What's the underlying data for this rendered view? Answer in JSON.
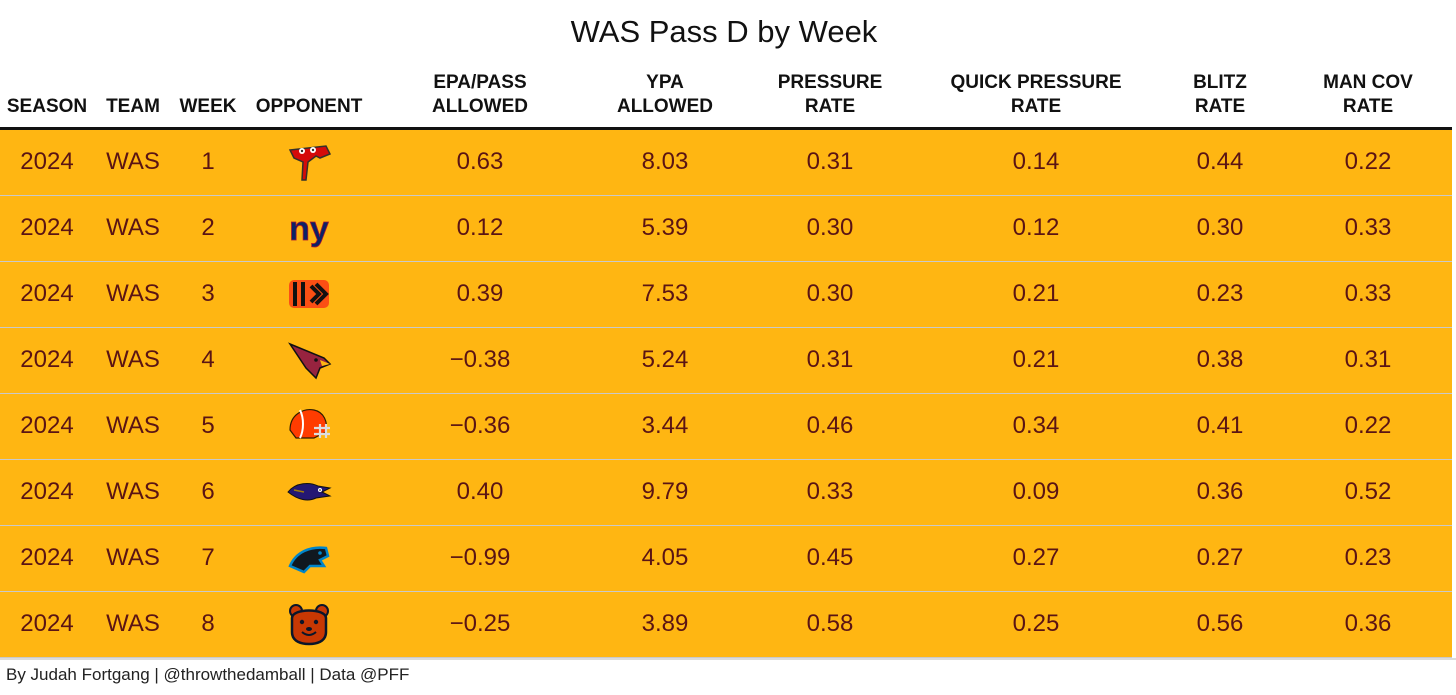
{
  "title": "WAS Pass D by Week",
  "columns": [
    "SEASON",
    "TEAM",
    "WEEK",
    "OPPONENT",
    "EPA/PASS\nALLOWED",
    "YPA\nALLOWED",
    "PRESSURE\nRATE",
    "QUICK PRESSURE\nRATE",
    "BLITZ\nRATE",
    "MAN COV\nRATE"
  ],
  "colors": {
    "row_bg": "#FFB612",
    "cell_text": "#5A1414",
    "header_rule": "#111111"
  },
  "chart_data": {
    "type": "table",
    "title": "WAS Pass D by Week",
    "rows": [
      {
        "season": "2024",
        "team": "WAS",
        "week": "1",
        "opponent": "tampa-bay-buccaneers-logo",
        "epa": "0.63",
        "ypa": "8.03",
        "pressure": "0.31",
        "quick_pressure": "0.14",
        "blitz": "0.44",
        "man_cov": "0.22"
      },
      {
        "season": "2024",
        "team": "WAS",
        "week": "2",
        "opponent": "new-york-giants-logo",
        "epa": "0.12",
        "ypa": "5.39",
        "pressure": "0.30",
        "quick_pressure": "0.12",
        "blitz": "0.30",
        "man_cov": "0.33"
      },
      {
        "season": "2024",
        "team": "WAS",
        "week": "3",
        "opponent": "cincinnati-bengals-logo",
        "epa": "0.39",
        "ypa": "7.53",
        "pressure": "0.30",
        "quick_pressure": "0.21",
        "blitz": "0.23",
        "man_cov": "0.33"
      },
      {
        "season": "2024",
        "team": "WAS",
        "week": "4",
        "opponent": "arizona-cardinals-logo",
        "epa": "−0.38",
        "ypa": "5.24",
        "pressure": "0.31",
        "quick_pressure": "0.21",
        "blitz": "0.38",
        "man_cov": "0.31"
      },
      {
        "season": "2024",
        "team": "WAS",
        "week": "5",
        "opponent": "cleveland-browns-logo",
        "epa": "−0.36",
        "ypa": "3.44",
        "pressure": "0.46",
        "quick_pressure": "0.34",
        "blitz": "0.41",
        "man_cov": "0.22"
      },
      {
        "season": "2024",
        "team": "WAS",
        "week": "6",
        "opponent": "baltimore-ravens-logo",
        "epa": "0.40",
        "ypa": "9.79",
        "pressure": "0.33",
        "quick_pressure": "0.09",
        "blitz": "0.36",
        "man_cov": "0.52"
      },
      {
        "season": "2024",
        "team": "WAS",
        "week": "7",
        "opponent": "carolina-panthers-logo",
        "epa": "−0.99",
        "ypa": "4.05",
        "pressure": "0.45",
        "quick_pressure": "0.27",
        "blitz": "0.27",
        "man_cov": "0.23"
      },
      {
        "season": "2024",
        "team": "WAS",
        "week": "8",
        "opponent": "chicago-bears-logo",
        "epa": "−0.25",
        "ypa": "3.89",
        "pressure": "0.58",
        "quick_pressure": "0.25",
        "blitz": "0.56",
        "man_cov": "0.36"
      }
    ]
  },
  "footer": "By Judah Fortgang | @throwthedamball | Data @PFF"
}
